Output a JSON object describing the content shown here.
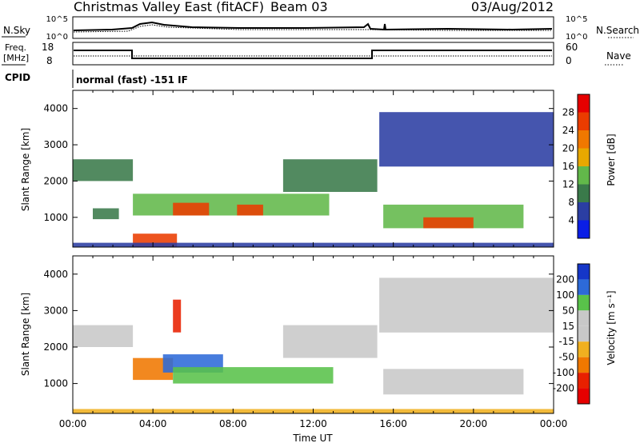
{
  "header": {
    "title": "Christmas Valley East (fitACF)",
    "beam": "Beam 03",
    "date": "03/Aug/2012"
  },
  "strips": {
    "nsky_label": "N.Sky",
    "nsearch_label": "N.Search",
    "noise_ticks_left": [
      "10^5",
      "10^0"
    ],
    "noise_ticks_right": [
      "10^5",
      "10^0"
    ],
    "freq_label": [
      "Freq.",
      "[MHz]"
    ],
    "freq_ticks": [
      "18",
      "8"
    ],
    "nave_label": "Nave",
    "nave_ticks": [
      "60",
      "0"
    ],
    "cpid_label": "CPID",
    "cpid_text": "normal (fast) -151 IF"
  },
  "colors": {
    "power": [
      "#0a1ee6",
      "#2b3ea3",
      "#3a7a4a",
      "#62b84a",
      "#e8a800",
      "#f07800",
      "#ea3c00",
      "#e60000"
    ],
    "velocity": [
      "#1536c8",
      "#2d6ad8",
      "#59c24a",
      "#c8c8c8",
      "#c8c8c8",
      "#f0b020",
      "#f07800",
      "#e82000",
      "#e60000"
    ]
  },
  "chart_data": [
    {
      "type": "heatmap",
      "panel": "power",
      "ylabel": "Slant Range [km]",
      "xlabel": "Time UT",
      "x_ticks": [
        "00:00",
        "04:00",
        "08:00",
        "12:00",
        "16:00",
        "20:00",
        "00:00"
      ],
      "xlim": [
        0,
        24
      ],
      "ylim": [
        180,
        4500
      ],
      "y_ticks": [
        1000,
        2000,
        3000,
        4000
      ],
      "colorbar": {
        "label": "Power [dB]",
        "ticks": [
          4,
          8,
          12,
          16,
          20,
          24,
          28
        ],
        "range": [
          0,
          32
        ]
      },
      "features": [
        {
          "t0": 0.0,
          "t1": 3.0,
          "r0": 2000,
          "r1": 2600,
          "power": 11
        },
        {
          "t0": 1.0,
          "t1": 2.3,
          "r0": 950,
          "r1": 1250,
          "power": 8
        },
        {
          "t0": 3.0,
          "t1": 12.8,
          "r0": 1050,
          "r1": 1650,
          "power": 14
        },
        {
          "t0": 5.0,
          "t1": 6.8,
          "r0": 1050,
          "r1": 1400,
          "power": 26
        },
        {
          "t0": 8.2,
          "t1": 9.5,
          "r0": 1050,
          "r1": 1350,
          "power": 25
        },
        {
          "t0": 3.0,
          "t1": 5.2,
          "r0": 180,
          "r1": 550,
          "power": 27
        },
        {
          "t0": 10.5,
          "t1": 15.2,
          "r0": 1700,
          "r1": 2600,
          "power": 10
        },
        {
          "t0": 15.5,
          "t1": 22.5,
          "r0": 700,
          "r1": 1350,
          "power": 14
        },
        {
          "t0": 17.5,
          "t1": 20.0,
          "r0": 700,
          "r1": 1000,
          "power": 25
        },
        {
          "t0": 15.3,
          "t1": 24.0,
          "r0": 2400,
          "r1": 3900,
          "power": 6
        },
        {
          "t0": 0.0,
          "t1": 24.0,
          "r0": 180,
          "r1": 300,
          "power": 6
        }
      ]
    },
    {
      "type": "heatmap",
      "panel": "velocity",
      "ylabel": "Slant Range [km]",
      "xlabel": "Time UT",
      "x_ticks": [
        "00:00",
        "04:00",
        "08:00",
        "12:00",
        "16:00",
        "20:00",
        "00:00"
      ],
      "xlim": [
        0,
        24
      ],
      "ylim": [
        180,
        4500
      ],
      "y_ticks": [
        1000,
        2000,
        3000,
        4000
      ],
      "colorbar": {
        "label": "Velocity [m s⁻¹]",
        "ticks": [
          200,
          100,
          50,
          15,
          -15,
          -50,
          -100,
          -200
        ]
      },
      "features": [
        {
          "t0": 0.0,
          "t1": 3.0,
          "r0": 2000,
          "r1": 2600,
          "velocity": 0
        },
        {
          "t0": 3.0,
          "t1": 5.0,
          "r0": 1100,
          "r1": 1700,
          "velocity": -60
        },
        {
          "t0": 4.5,
          "t1": 7.5,
          "r0": 1300,
          "r1": 1800,
          "velocity": 180
        },
        {
          "t0": 5.0,
          "t1": 13.0,
          "r0": 1000,
          "r1": 1450,
          "velocity": 60
        },
        {
          "t0": 10.5,
          "t1": 15.2,
          "r0": 1700,
          "r1": 2600,
          "velocity": 0
        },
        {
          "t0": 15.5,
          "t1": 22.5,
          "r0": 700,
          "r1": 1400,
          "velocity": 0
        },
        {
          "t0": 15.3,
          "t1": 24.0,
          "r0": 2400,
          "r1": 3900,
          "velocity": 0
        },
        {
          "t0": 0.0,
          "t1": 24.0,
          "r0": 180,
          "r1": 300,
          "velocity": -40
        },
        {
          "t0": 5.0,
          "t1": 5.4,
          "r0": 2400,
          "r1": 3300,
          "velocity": -150
        }
      ]
    }
  ]
}
